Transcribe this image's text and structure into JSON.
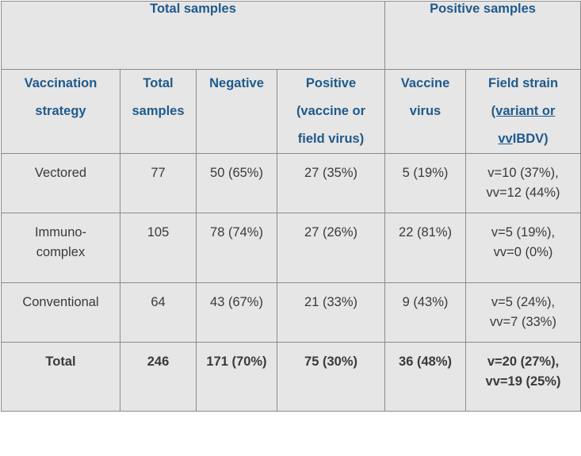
{
  "table": {
    "group_headers": [
      {
        "label": "Total samples",
        "span": 4
      },
      {
        "label": "Positive samples",
        "span": 2
      }
    ],
    "headers": {
      "strategy": [
        "Vaccination",
        "strategy"
      ],
      "total": [
        "Total",
        "samples"
      ],
      "negative": [
        "Negative"
      ],
      "positive": [
        "Positive",
        "(vaccine or",
        "field virus)"
      ],
      "vaccine_virus": [
        "Vaccine",
        "virus"
      ],
      "field_strain_line1": "Field strain",
      "field_strain_line2": "(variant or",
      "field_strain_vv": "vv",
      "field_strain_ibdv": "IBDV)"
    },
    "rows": [
      {
        "strategy": [
          "Vectored"
        ],
        "total": "77",
        "negative": "50 (65%)",
        "positive": "27 (35%)",
        "vaccine_virus": "5 (19%)",
        "field_strain": [
          "v=10 (37%),",
          "vv=12 (44%)"
        ]
      },
      {
        "strategy": [
          "Immuno-",
          "complex"
        ],
        "total": "105",
        "negative": "78 (74%)",
        "positive": "27 (26%)",
        "vaccine_virus": "22 (81%)",
        "field_strain": [
          "v=5 (19%),",
          "vv=0 (0%)"
        ]
      },
      {
        "strategy": [
          "Conventional"
        ],
        "total": "64",
        "negative": "43 (67%)",
        "positive": "21 (33%)",
        "vaccine_virus": "9 (43%)",
        "field_strain": [
          "v=5 (24%),",
          "vv=7 (33%)"
        ]
      },
      {
        "strategy": [
          "Total"
        ],
        "total": "246",
        "negative": "171 (70%)",
        "positive": "75 (30%)",
        "vaccine_virus": "36 (48%)",
        "field_strain": [
          "v=20 (27%),",
          "vv=19 (25%)"
        ]
      }
    ],
    "colors": {
      "header_text": "#1f5a8c",
      "cell_background": "#e6e6e6",
      "border": "#8c8c8c"
    }
  }
}
